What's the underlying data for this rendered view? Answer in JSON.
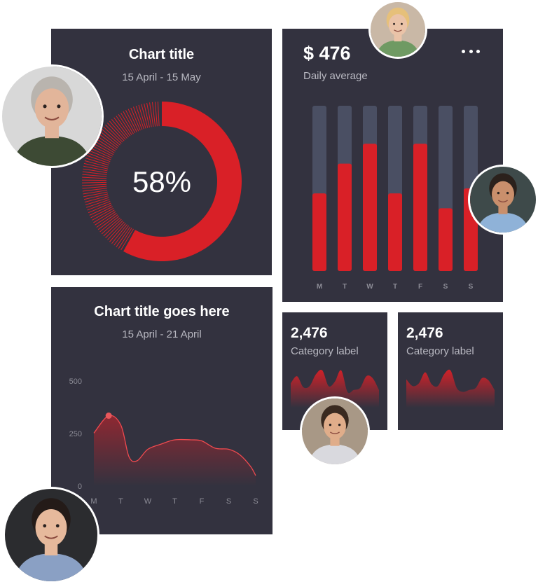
{
  "colors": {
    "card_bg": "#33323f",
    "accent_red": "#d92027",
    "track": "#4a4f63",
    "muted_text": "#b9b9c2",
    "axis_text": "#8c8c96"
  },
  "donut_card": {
    "title": "Chart title",
    "subtitle": "15 April - 15 May",
    "chart_data": {
      "type": "pie",
      "title": "Chart title",
      "subtitle": "15 April - 15 May",
      "value_percent": 58,
      "value_label": "58%"
    }
  },
  "bar_card": {
    "amount": "$ 476",
    "amount_label": "Daily average",
    "menu_icon": "more-horizontal-icon",
    "chart_data": {
      "type": "bar",
      "categories": [
        "M",
        "T",
        "W",
        "T",
        "F",
        "S",
        "S"
      ],
      "values": [
        0.47,
        0.65,
        0.77,
        0.47,
        0.77,
        0.38,
        0.5
      ],
      "ylim": [
        0,
        1
      ]
    }
  },
  "line_card": {
    "title": "Chart title goes here",
    "subtitle": "15 April - 21 April",
    "chart_data": {
      "type": "area",
      "title": "Chart title goes here",
      "subtitle": "15 April - 21 April",
      "categories": [
        "M",
        "T",
        "W",
        "T",
        "F",
        "S",
        "S"
      ],
      "x": [
        0,
        0.55,
        1,
        1.3,
        1.6,
        2,
        2.5,
        3,
        3.6,
        4,
        4.5,
        5,
        5.4,
        5.8,
        6
      ],
      "y": [
        252,
        335,
        290,
        140,
        120,
        175,
        200,
        220,
        220,
        215,
        180,
        175,
        150,
        95,
        50
      ],
      "highlight_index": 1,
      "yticks": [
        0,
        250,
        500
      ],
      "ylim": [
        0,
        500
      ]
    }
  },
  "mini_cards": [
    {
      "value": "2,476",
      "label": "Category label",
      "chart_data": {
        "type": "area",
        "values": [
          0.62,
          0.8,
          0.52,
          0.55,
          0.85,
          0.95,
          0.55,
          0.66,
          0.95,
          0.4,
          0.45,
          0.5,
          0.8,
          0.75,
          0.45
        ]
      }
    },
    {
      "value": "2,476",
      "label": "Category label",
      "chart_data": {
        "type": "area",
        "values": [
          0.72,
          0.55,
          0.62,
          0.9,
          0.6,
          0.55,
          0.85,
          0.95,
          0.5,
          0.4,
          0.45,
          0.5,
          0.75,
          0.7,
          0.45
        ]
      }
    }
  ],
  "avatars": [
    {
      "name": "avatar-man-glasses",
      "skin": "#e2b59a",
      "hair": "#b9b4ae",
      "shirt": "#3d4a34",
      "bg": "#d8d8d8"
    },
    {
      "name": "avatar-woman-laughing",
      "skin": "#eac3a8",
      "hair": "#e6c07a",
      "shirt": "#6f9a63",
      "bg": "#c9b8a6"
    },
    {
      "name": "avatar-man-smiling",
      "skin": "#c98f6c",
      "hair": "#2b211c",
      "shirt": "#8fb2d8",
      "bg": "#3e4a4a"
    },
    {
      "name": "avatar-man-suit",
      "skin": "#e0ad8a",
      "hair": "#3a2a20",
      "shirt": "#d9d9de",
      "bg": "#a89886"
    },
    {
      "name": "avatar-woman-dark-hair",
      "skin": "#e6b99c",
      "hair": "#241b18",
      "shirt": "#8aa0c4",
      "bg": "#2b2c2f"
    }
  ]
}
